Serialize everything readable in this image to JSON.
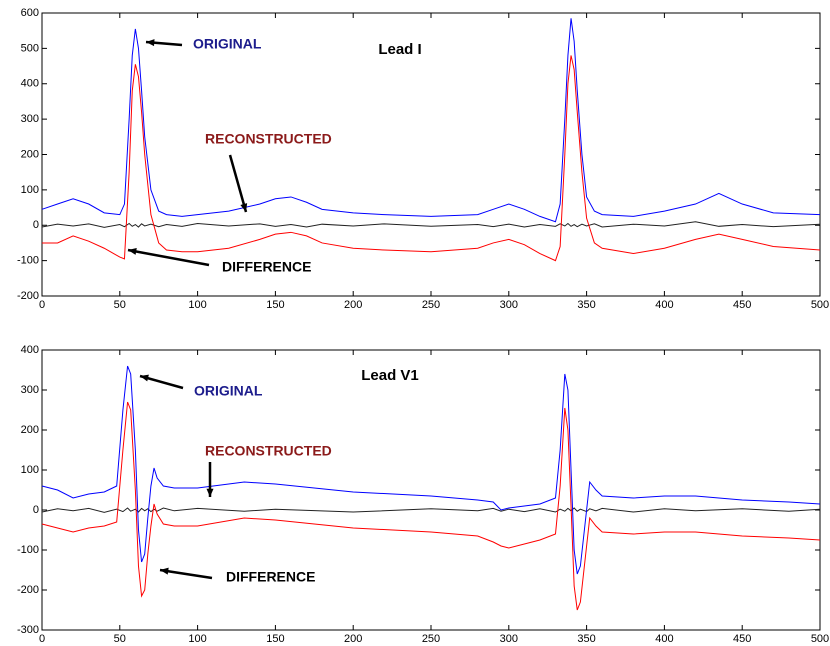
{
  "chart_data": [
    {
      "type": "line",
      "title": "Lead I",
      "x": [
        0,
        10,
        20,
        30,
        40,
        50,
        53,
        56,
        58,
        60,
        62,
        64,
        66,
        70,
        75,
        80,
        90,
        100,
        120,
        140,
        150,
        160,
        170,
        180,
        200,
        220,
        250,
        280,
        290,
        300,
        310,
        320,
        330,
        333,
        336,
        338,
        340,
        342,
        344,
        347,
        350,
        355,
        360,
        380,
        400,
        420,
        435,
        450,
        470,
        500
      ],
      "series": [
        {
          "name": "ORIGINAL",
          "color": "#0000ff",
          "label_color": "#1c1c8c",
          "values": [
            45,
            60,
            75,
            60,
            35,
            30,
            60,
            300,
            480,
            555,
            500,
            380,
            250,
            100,
            40,
            30,
            25,
            30,
            40,
            60,
            75,
            80,
            65,
            45,
            35,
            30,
            25,
            30,
            45,
            60,
            45,
            25,
            10,
            60,
            300,
            480,
            585,
            520,
            380,
            200,
            80,
            40,
            30,
            25,
            40,
            60,
            90,
            60,
            35,
            30
          ]
        },
        {
          "name": "RECONSTRUCTED",
          "color": "#ff0000",
          "label_color": "#8b1a1a",
          "values": [
            -50,
            -50,
            -30,
            -45,
            -65,
            -90,
            -95,
            150,
            380,
            455,
            420,
            320,
            200,
            30,
            -50,
            -70,
            -75,
            -75,
            -65,
            -40,
            -25,
            -20,
            -30,
            -50,
            -65,
            -70,
            -75,
            -65,
            -50,
            -40,
            -55,
            -80,
            -100,
            -60,
            200,
            400,
            480,
            440,
            320,
            150,
            20,
            -50,
            -65,
            -80,
            -65,
            -40,
            -25,
            -40,
            -60,
            -70
          ]
        },
        {
          "name": "DIFFERENCE",
          "color": "#222222",
          "label_color": "#000000",
          "values": [
            -5,
            3,
            -2,
            4,
            -6,
            2,
            -4,
            5,
            -3,
            2,
            -5,
            4,
            -2,
            3,
            -4,
            2,
            -3,
            5,
            -2,
            4,
            -3,
            2,
            -5,
            3,
            -2,
            4,
            -3,
            2,
            -4,
            3,
            -5,
            2,
            -3,
            4,
            -2,
            5,
            -3,
            2,
            -4,
            3,
            -2,
            4,
            -5,
            3,
            -2,
            10,
            -3,
            2,
            -4,
            3
          ]
        }
      ],
      "xlim": [
        0,
        500
      ],
      "xticks": [
        0,
        50,
        100,
        150,
        200,
        250,
        300,
        350,
        400,
        450,
        500
      ],
      "ylim": [
        -200,
        600
      ],
      "yticks": [
        -200,
        -100,
        0,
        100,
        200,
        300,
        400,
        500,
        600
      ],
      "grid": false
    },
    {
      "type": "line",
      "title": "Lead V1",
      "x": [
        0,
        10,
        20,
        30,
        40,
        48,
        52,
        55,
        57,
        60,
        62,
        64,
        66,
        68,
        70,
        72,
        74,
        78,
        85,
        100,
        130,
        150,
        200,
        250,
        280,
        290,
        295,
        300,
        310,
        320,
        330,
        333,
        336,
        338,
        340,
        342,
        344,
        346,
        350,
        352,
        356,
        360,
        380,
        400,
        420,
        450,
        480,
        500
      ],
      "series": [
        {
          "name": "ORIGINAL",
          "color": "#0000ff",
          "label_color": "#1c1c8c",
          "values": [
            60,
            50,
            30,
            40,
            45,
            60,
            250,
            360,
            340,
            150,
            -50,
            -130,
            -110,
            -20,
            60,
            105,
            80,
            60,
            55,
            55,
            70,
            65,
            45,
            35,
            25,
            20,
            0,
            5,
            10,
            15,
            30,
            150,
            340,
            300,
            100,
            -100,
            -160,
            -140,
            0,
            70,
            50,
            35,
            30,
            35,
            35,
            25,
            20,
            15
          ]
        },
        {
          "name": "RECONSTRUCTED",
          "color": "#ff0000",
          "label_color": "#8b1a1a",
          "values": [
            -35,
            -45,
            -55,
            -45,
            -40,
            -30,
            150,
            270,
            250,
            50,
            -140,
            -215,
            -200,
            -110,
            -40,
            15,
            -10,
            -35,
            -40,
            -40,
            -20,
            -25,
            -45,
            -55,
            -65,
            -80,
            -90,
            -95,
            -85,
            -75,
            -60,
            60,
            255,
            200,
            10,
            -190,
            -250,
            -230,
            -90,
            -20,
            -40,
            -55,
            -60,
            -55,
            -55,
            -65,
            -70,
            -75
          ]
        },
        {
          "name": "DIFFERENCE",
          "color": "#222222",
          "label_color": "#000000",
          "values": [
            -5,
            3,
            -2,
            4,
            -6,
            2,
            -4,
            5,
            -3,
            2,
            -5,
            4,
            -2,
            3,
            -4,
            2,
            -3,
            5,
            -2,
            4,
            -3,
            2,
            -5,
            3,
            -2,
            4,
            -3,
            2,
            -4,
            3,
            -5,
            2,
            -3,
            4,
            -2,
            5,
            -3,
            2,
            -4,
            3,
            -2,
            4,
            -5,
            3,
            -2,
            3,
            -3,
            2
          ]
        }
      ],
      "xlim": [
        0,
        500
      ],
      "xticks": [
        0,
        50,
        100,
        150,
        200,
        250,
        300,
        350,
        400,
        450,
        500
      ],
      "ylim": [
        -300,
        400
      ],
      "yticks": [
        -300,
        -200,
        -100,
        0,
        100,
        200,
        300,
        400
      ],
      "grid": false
    }
  ]
}
